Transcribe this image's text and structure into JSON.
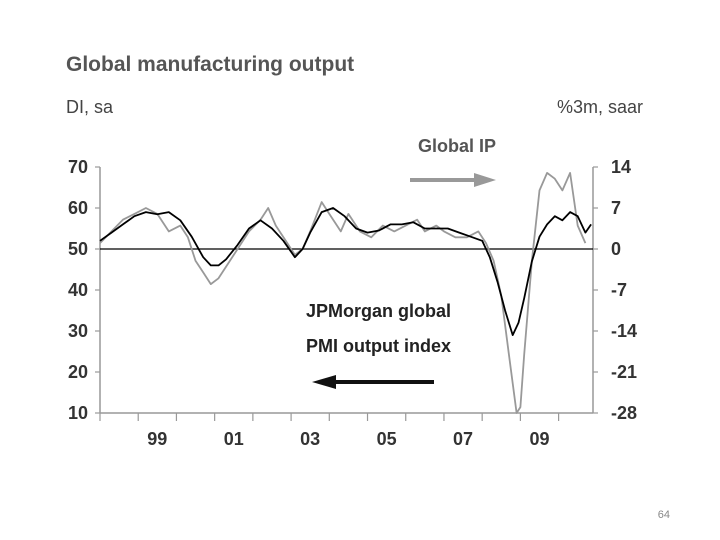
{
  "chart_data": {
    "type": "line",
    "title": "Global manufacturing output",
    "left_unit": "DI, sa",
    "right_unit": "%3m, saar",
    "left_axis": {
      "min": 10,
      "max": 70,
      "ticks": [
        "70",
        "60",
        "50",
        "40",
        "30",
        "20",
        "10"
      ],
      "tick_values": [
        70,
        60,
        50,
        40,
        30,
        20,
        10
      ]
    },
    "right_axis": {
      "min": -28,
      "max": 14,
      "ticks": [
        "14",
        "7",
        "0",
        "-7",
        "-14",
        "-21",
        "-28"
      ],
      "tick_values": [
        14,
        7,
        0,
        -7,
        -14,
        -21,
        -28
      ]
    },
    "x_axis": {
      "min": 1998.0,
      "max": 2010.9,
      "ticks": [
        "99",
        "01",
        "03",
        "05",
        "07",
        "09"
      ],
      "tick_values": [
        1999.5,
        2001.5,
        2003.5,
        2005.5,
        2007.5,
        2009.5
      ]
    },
    "reference_line": {
      "axis": "left",
      "value": 50
    },
    "series": [
      {
        "name": "JPMorgan global PMI output index",
        "axis": "left",
        "color": "#000000",
        "x": [
          1998.0,
          1998.3,
          1998.6,
          1998.9,
          1999.2,
          1999.5,
          1999.8,
          2000.1,
          2000.4,
          2000.7,
          2000.9,
          2001.1,
          2001.3,
          2001.6,
          2001.9,
          2002.2,
          2002.5,
          2002.8,
          2003.1,
          2003.3,
          2003.5,
          2003.8,
          2004.1,
          2004.4,
          2004.7,
          2005.0,
          2005.3,
          2005.6,
          2005.9,
          2006.2,
          2006.5,
          2006.8,
          2007.1,
          2007.4,
          2007.7,
          2008.0,
          2008.2,
          2008.4,
          2008.6,
          2008.8,
          2008.95,
          2009.1,
          2009.3,
          2009.5,
          2009.7,
          2009.9,
          2010.1,
          2010.3,
          2010.5,
          2010.7,
          2010.85
        ],
        "values": [
          52,
          54,
          56,
          58,
          59,
          58.5,
          59,
          57,
          53,
          48,
          46,
          46,
          47.5,
          51,
          55,
          57,
          55,
          52,
          48,
          50,
          54,
          59,
          60,
          58,
          55,
          54,
          54.5,
          56,
          56,
          56.5,
          55,
          55,
          55,
          54,
          53,
          52,
          48,
          42,
          35,
          29,
          32,
          38,
          47,
          53,
          56,
          58,
          57,
          59,
          58,
          54,
          56
        ]
      },
      {
        "name": "Global IP",
        "axis": "right",
        "color": "#999999",
        "x": [
          1998.0,
          1998.3,
          1998.6,
          1998.9,
          1999.2,
          1999.5,
          1999.8,
          2000.1,
          2000.3,
          2000.5,
          2000.7,
          2000.9,
          2001.1,
          2001.3,
          2001.6,
          2001.9,
          2002.2,
          2002.4,
          2002.6,
          2002.9,
          2003.1,
          2003.3,
          2003.5,
          2003.8,
          2004.0,
          2004.3,
          2004.5,
          2004.8,
          2005.1,
          2005.4,
          2005.7,
          2006.0,
          2006.3,
          2006.5,
          2006.8,
          2007.0,
          2007.3,
          2007.6,
          2007.9,
          2008.1,
          2008.3,
          2008.5,
          2008.7,
          2008.9,
          2009.0,
          2009.1,
          2009.3,
          2009.5,
          2009.7,
          2009.9,
          2010.1,
          2010.3,
          2010.5,
          2010.7
        ],
        "values": [
          1,
          3,
          5,
          6,
          7,
          6,
          3,
          4,
          2,
          -2,
          -4,
          -6,
          -5,
          -3,
          0,
          3,
          5,
          7,
          4,
          1,
          -1,
          0,
          3,
          8,
          6,
          3,
          6,
          3,
          2,
          4,
          3,
          4,
          5,
          3,
          4,
          3,
          2,
          2,
          3,
          1,
          -2,
          -8,
          -18,
          -28,
          -27,
          -18,
          -2,
          10,
          13,
          12,
          10,
          13,
          4,
          1
        ]
      }
    ],
    "annotations": [
      {
        "text": "Global IP",
        "arrow": "right"
      },
      {
        "text": "JPMorgan global",
        "arrow": "none"
      },
      {
        "text": "PMI output index",
        "arrow": "left"
      }
    ]
  },
  "page_number": "64"
}
